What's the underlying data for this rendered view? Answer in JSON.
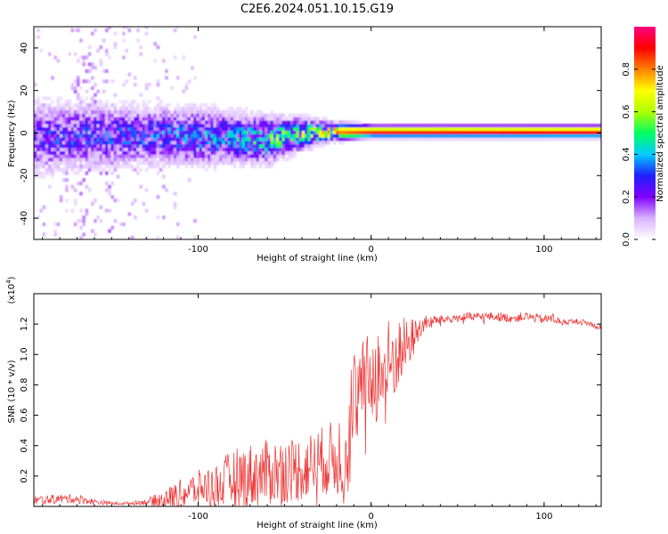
{
  "title": "C2E6.2024.051.10.15.G19",
  "chart_data": [
    {
      "type": "heatmap",
      "panel": "top",
      "xlabel": "Height of straight line (km)",
      "ylabel": "Frequency (Hz)",
      "xlim": [
        -195,
        133
      ],
      "ylim": [
        -50,
        50
      ],
      "x_ticks": [
        -100,
        0,
        100
      ],
      "x_tick_labels": [
        "-100",
        "0",
        "100"
      ],
      "y_ticks": [
        -40,
        -20,
        0,
        20,
        40
      ],
      "y_tick_labels": [
        "-40",
        "-20",
        "0",
        "20",
        "40"
      ],
      "colorbar": {
        "label": "Normalized spectral amplitude",
        "range": [
          0,
          1
        ],
        "ticks": [
          0.0,
          0.2,
          0.4,
          0.6,
          0.8
        ],
        "tick_labels": [
          "0.0",
          "0.2",
          "0.4",
          "0.6",
          "0.8"
        ],
        "colors": [
          "#ffffff",
          "#d9b3ff",
          "#8000ff",
          "#2020ff",
          "#00ccff",
          "#00ff60",
          "#b0ff00",
          "#ffff00",
          "#ff8000",
          "#ff0000",
          "#ff0080"
        ]
      },
      "band_center_hz": [
        {
          "x": -190,
          "y": -3
        },
        {
          "x": -160,
          "y": -2
        },
        {
          "x": -120,
          "y": -2
        },
        {
          "x": -80,
          "y": -3
        },
        {
          "x": -60,
          "y": -4
        },
        {
          "x": -40,
          "y": -1
        },
        {
          "x": -20,
          "y": 0
        },
        {
          "x": 0,
          "y": 0
        },
        {
          "x": 50,
          "y": 0
        },
        {
          "x": 100,
          "y": 0
        },
        {
          "x": 133,
          "y": 0
        }
      ],
      "band_halfwidth_hz": [
        {
          "x": -190,
          "y": 14
        },
        {
          "x": -150,
          "y": 12
        },
        {
          "x": -100,
          "y": 11
        },
        {
          "x": -60,
          "y": 9
        },
        {
          "x": -40,
          "y": 6
        },
        {
          "x": -20,
          "y": 3
        },
        {
          "x": 0,
          "y": 2
        },
        {
          "x": 133,
          "y": 2
        }
      ],
      "peak_amplitude": [
        {
          "x": -190,
          "y": 0.25
        },
        {
          "x": -120,
          "y": 0.3
        },
        {
          "x": -80,
          "y": 0.35
        },
        {
          "x": -60,
          "y": 0.45
        },
        {
          "x": -30,
          "y": 0.55
        },
        {
          "x": -20,
          "y": 0.8
        },
        {
          "x": 0,
          "y": 0.9
        },
        {
          "x": 133,
          "y": 0.95
        }
      ]
    },
    {
      "type": "line",
      "panel": "bottom",
      "xlabel": "Height of straight line (km)",
      "ylabel": "SNR (10 * v/v)",
      "y_multiplier": "(x10^4)",
      "xlim": [
        -195,
        133
      ],
      "ylim": [
        0,
        1.4
      ],
      "x_ticks": [
        -100,
        0,
        100
      ],
      "x_tick_labels": [
        "-100",
        "0",
        "100"
      ],
      "y_ticks": [
        0.2,
        0.4,
        0.6,
        0.8,
        1.0,
        1.2
      ],
      "y_tick_labels": [
        "0.2",
        "0.4",
        "0.6",
        "0.8",
        "1.0",
        "1.2"
      ],
      "color": "#ee3333",
      "series": [
        {
          "x": [
            -195,
            -180,
            -170,
            -160,
            -150,
            -140,
            -130,
            -120,
            -110,
            -100,
            -90,
            -80,
            -70,
            -60,
            -50,
            -40,
            -30,
            -20,
            -15,
            -12,
            -10,
            -5,
            0,
            5,
            10,
            15,
            20,
            25,
            30,
            40,
            50,
            60,
            70,
            80,
            90,
            100,
            105,
            110,
            120,
            130,
            133
          ],
          "mean": [
            0.04,
            0.05,
            0.05,
            0.03,
            0.02,
            0.02,
            0.03,
            0.05,
            0.08,
            0.12,
            0.14,
            0.18,
            0.2,
            0.22,
            0.24,
            0.25,
            0.3,
            0.32,
            0.38,
            0.55,
            0.7,
            0.8,
            0.85,
            0.88,
            0.9,
            1.0,
            1.05,
            1.12,
            1.2,
            1.23,
            1.24,
            1.25,
            1.25,
            1.24,
            1.25,
            1.23,
            1.24,
            1.21,
            1.22,
            1.19,
            1.18
          ],
          "spread": [
            0.03,
            0.03,
            0.03,
            0.02,
            0.01,
            0.01,
            0.02,
            0.06,
            0.1,
            0.12,
            0.14,
            0.2,
            0.22,
            0.22,
            0.22,
            0.22,
            0.22,
            0.26,
            0.35,
            0.45,
            0.35,
            0.3,
            0.3,
            0.35,
            0.35,
            0.25,
            0.2,
            0.12,
            0.06,
            0.03,
            0.03,
            0.03,
            0.03,
            0.03,
            0.03,
            0.03,
            0.04,
            0.02,
            0.02,
            0.02,
            0.02
          ]
        }
      ]
    }
  ]
}
